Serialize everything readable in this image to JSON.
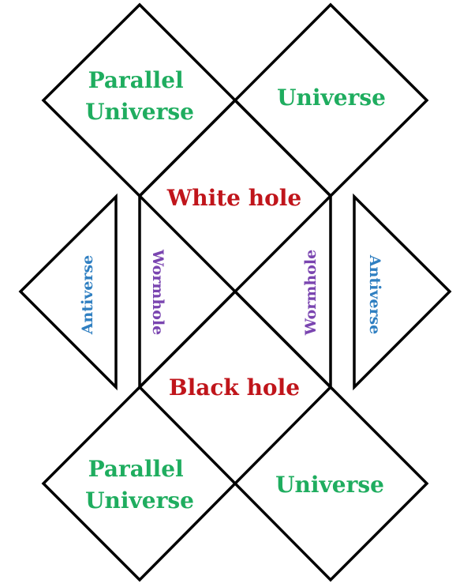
{
  "labels": {
    "parallel_top": [
      "Parallel",
      "Universe"
    ],
    "universe_top": "Universe",
    "white_hole": "White hole",
    "black_hole": "Black hole",
    "parallel_bottom": [
      "Parallel",
      "Universe"
    ],
    "universe_bottom": "Universe",
    "antiverse_left": "Antiverse",
    "antiverse_right": "Antiverse",
    "wormhole_left": "Wormhole",
    "wormhole_right": "Wormhole"
  },
  "colors": {
    "universe": "#1fad5f",
    "hole": "#c0151b",
    "wormhole": "#7a45b0",
    "antiverse": "#2f7fc1",
    "stroke": "#000000"
  }
}
